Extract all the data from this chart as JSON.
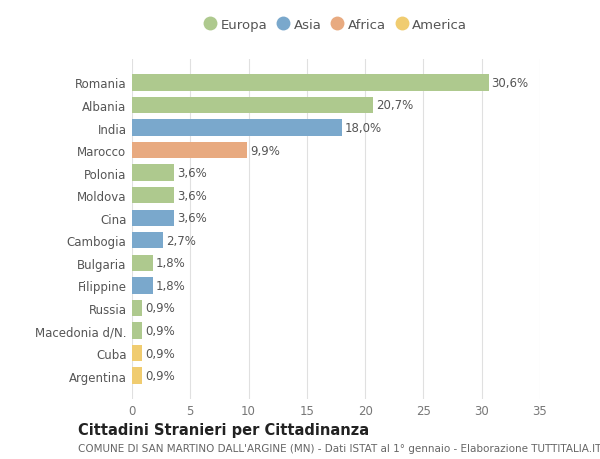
{
  "categories": [
    "Romania",
    "Albania",
    "India",
    "Marocco",
    "Polonia",
    "Moldova",
    "Cina",
    "Cambogia",
    "Bulgaria",
    "Filippine",
    "Russia",
    "Macedonia d/N.",
    "Cuba",
    "Argentina"
  ],
  "values": [
    30.6,
    20.7,
    18.0,
    9.9,
    3.6,
    3.6,
    3.6,
    2.7,
    1.8,
    1.8,
    0.9,
    0.9,
    0.9,
    0.9
  ],
  "labels": [
    "30,6%",
    "20,7%",
    "18,0%",
    "9,9%",
    "3,6%",
    "3,6%",
    "3,6%",
    "2,7%",
    "1,8%",
    "1,8%",
    "0,9%",
    "0,9%",
    "0,9%",
    "0,9%"
  ],
  "continents": [
    "Europa",
    "Europa",
    "Asia",
    "Africa",
    "Europa",
    "Europa",
    "Asia",
    "Asia",
    "Europa",
    "Asia",
    "Europa",
    "Europa",
    "America",
    "America"
  ],
  "continent_colors": {
    "Europa": "#aec98e",
    "Asia": "#7aa8cc",
    "Africa": "#e8aa80",
    "America": "#f0cc70"
  },
  "legend_order": [
    "Europa",
    "Asia",
    "Africa",
    "America"
  ],
  "title": "Cittadini Stranieri per Cittadinanza",
  "subtitle": "COMUNE DI SAN MARTINO DALL'ARGINE (MN) - Dati ISTAT al 1° gennaio - Elaborazione TUTTITALIA.IT",
  "xlim": [
    0,
    35
  ],
  "xticks": [
    0,
    5,
    10,
    15,
    20,
    25,
    30,
    35
  ],
  "background_color": "#ffffff",
  "grid_color": "#e0e0e0",
  "bar_height": 0.72,
  "label_fontsize": 8.5,
  "tick_fontsize": 8.5,
  "title_fontsize": 10.5,
  "subtitle_fontsize": 7.5
}
